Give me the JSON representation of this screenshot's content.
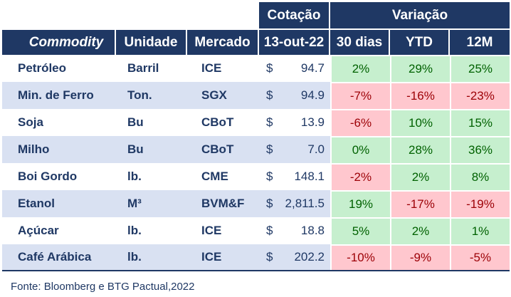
{
  "header": {
    "cotacao": "Cotação",
    "variacao": "Variação",
    "columns": {
      "commodity": "Commodity",
      "unidade": "Unidade",
      "mercado": "Mercado",
      "date": "13-out-22",
      "d30": "30 dias",
      "ytd": "YTD",
      "m12": "12M"
    }
  },
  "rows": [
    {
      "commodity": "Petróleo",
      "unidade": "Barril",
      "mercado": "ICE",
      "cur": "$",
      "price": "94.7",
      "d30": "2%",
      "ytd": "29%",
      "m12": "25%"
    },
    {
      "commodity": "Min. de Ferro",
      "unidade": "Ton.",
      "mercado": "SGX",
      "cur": "$",
      "price": "94.9",
      "d30": "-7%",
      "ytd": "-16%",
      "m12": "-23%"
    },
    {
      "commodity": "Soja",
      "unidade": "Bu",
      "mercado": "CBoT",
      "cur": "$",
      "price": "13.9",
      "d30": "-6%",
      "ytd": "10%",
      "m12": "15%"
    },
    {
      "commodity": "Milho",
      "unidade": "Bu",
      "mercado": "CBoT",
      "cur": "$",
      "price": "7.0",
      "d30": "0%",
      "ytd": "28%",
      "m12": "36%"
    },
    {
      "commodity": "Boi Gordo",
      "unidade": "lb.",
      "mercado": "CME",
      "cur": "$",
      "price": "148.1",
      "d30": "-2%",
      "ytd": "2%",
      "m12": "8%"
    },
    {
      "commodity": "Etanol",
      "unidade": "M³",
      "mercado": "BVM&F",
      "cur": "$",
      "price": "2,811.5",
      "d30": "19%",
      "ytd": "-17%",
      "m12": "-19%"
    },
    {
      "commodity": "Açúcar",
      "unidade": "lb.",
      "mercado": "ICE",
      "cur": "$",
      "price": "18.8",
      "d30": "5%",
      "ytd": "2%",
      "m12": "1%"
    },
    {
      "commodity": "Café Arábica",
      "unidade": "lb.",
      "mercado": "ICE",
      "cur": "$",
      "price": "202.2",
      "d30": "-10%",
      "ytd": "-9%",
      "m12": "-5%"
    }
  ],
  "colors": {
    "header_bg": "#1f3864",
    "alt_row": "#d9e1f2",
    "positive_bg": "#c6efce",
    "negative_bg": "#ffc7ce"
  },
  "source": "Fonte: Bloomberg e BTG Pactual,2022"
}
